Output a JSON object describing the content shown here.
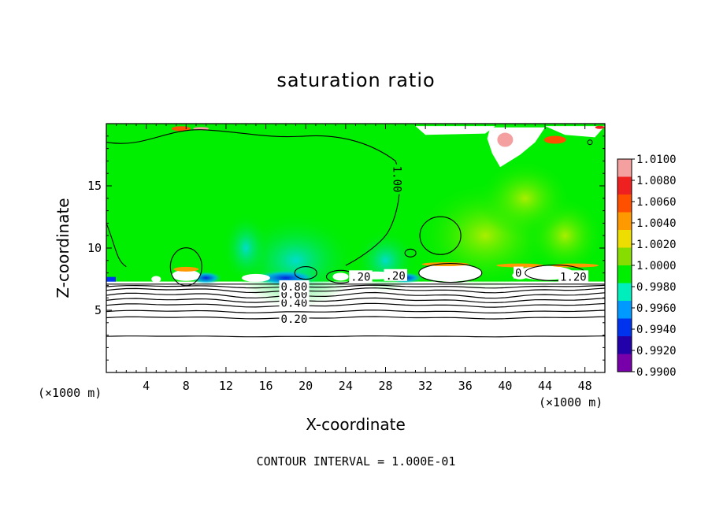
{
  "chart_data": {
    "type": "heatmap",
    "title": "saturation ratio",
    "xlabel": "X-coordinate",
    "ylabel": "Z-coordinate",
    "x_unit": "(×1000 m)",
    "xlim": [
      0,
      50
    ],
    "ylim": [
      0,
      20
    ],
    "x_ticks": [
      4,
      8,
      12,
      16,
      20,
      24,
      28,
      32,
      36,
      40,
      44,
      48
    ],
    "y_ticks": [
      5,
      10,
      15
    ],
    "contour_interval_text": "CONTOUR INTERVAL = 1.000E-01",
    "contour_labels": [
      "0.20",
      "0.40",
      "0.60",
      "0.80",
      "1.00",
      ".20",
      ".20",
      "1.20",
      "0"
    ],
    "colorbar": {
      "levels": [
        "1.0100",
        "1.0080",
        "1.0060",
        "1.0040",
        "1.0020",
        "1.0000",
        "0.9980",
        "0.9960",
        "0.9940",
        "0.9920",
        "0.9900"
      ],
      "colors": [
        "#f4a0a0",
        "#ee2020",
        "#ff5000",
        "#ff9900",
        "#eedd00",
        "#88dd00",
        "#00ee00",
        "#00eebb",
        "#0099ff",
        "#0033ee",
        "#2200aa",
        "#7700aa"
      ]
    },
    "background_color": "#00ee00",
    "cloud_base_z": 7.3,
    "lower_layer_color": "#ffffff"
  }
}
